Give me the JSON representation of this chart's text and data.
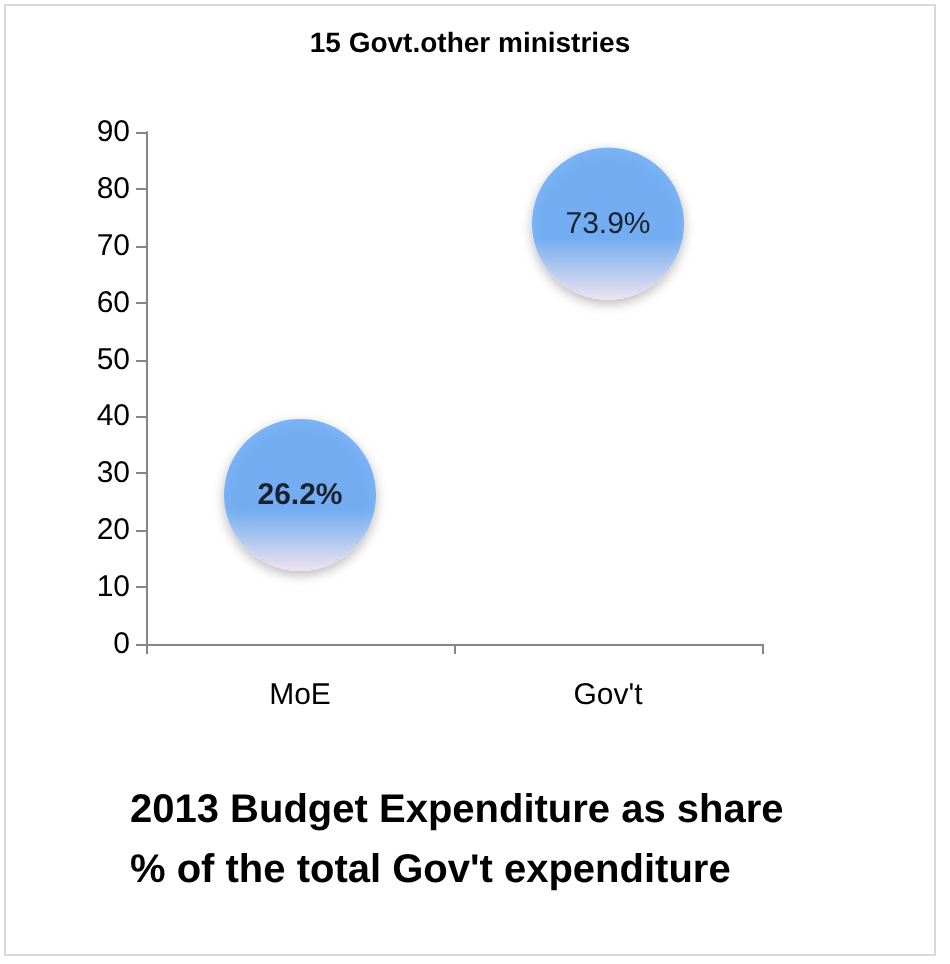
{
  "chart_data": {
    "type": "bubble",
    "title": "15 Govt.other ministries",
    "xlabel": "2013 Budget Expenditure as share % of the total Gov't expenditure",
    "categories": [
      "MoE",
      "Gov't"
    ],
    "series": [
      {
        "color": "#5ea4f5",
        "values": [
          26.2,
          73.9
        ],
        "sizes": [
          1,
          1
        ],
        "value_labels": [
          "26.2%",
          "73.9%"
        ]
      }
    ],
    "ylim": [
      0,
      90
    ],
    "yticks": [
      0,
      10,
      20,
      30,
      40,
      50,
      60,
      70,
      80,
      90
    ],
    "grid": false
  }
}
